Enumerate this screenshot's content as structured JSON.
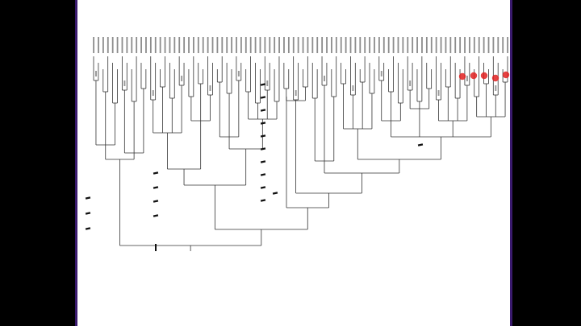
{
  "document": {
    "title": "",
    "background": "#ffffff",
    "frame_color": "#3a1a6e",
    "outer_background": "#000000"
  },
  "tree": {
    "branch_color": "#333333",
    "mark_color": "#111111",
    "highlight_color": "#e02020",
    "tip_count": 88
  }
}
